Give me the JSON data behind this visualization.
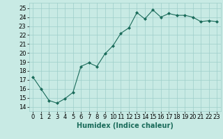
{
  "x": [
    0,
    1,
    2,
    3,
    4,
    5,
    6,
    7,
    8,
    9,
    10,
    11,
    12,
    13,
    14,
    15,
    16,
    17,
    18,
    19,
    20,
    21,
    22,
    23
  ],
  "y": [
    17.3,
    16.0,
    14.7,
    14.4,
    14.9,
    15.6,
    18.5,
    18.9,
    18.5,
    19.9,
    20.8,
    22.2,
    22.8,
    24.5,
    23.8,
    24.8,
    24.0,
    24.4,
    24.2,
    24.2,
    24.0,
    23.5,
    23.6,
    23.5
  ],
  "line_color": "#1a6b5a",
  "marker": "D",
  "marker_size": 2,
  "bg_color": "#c8eae4",
  "grid_color": "#9ececa",
  "xlabel": "Humidex (Indice chaleur)",
  "ylabel_ticks": [
    14,
    15,
    16,
    17,
    18,
    19,
    20,
    21,
    22,
    23,
    24,
    25
  ],
  "ylim": [
    13.5,
    25.6
  ],
  "xlim": [
    -0.5,
    23.5
  ],
  "xtick_labels": [
    "0",
    "1",
    "2",
    "3",
    "4",
    "5",
    "6",
    "7",
    "8",
    "9",
    "10",
    "11",
    "12",
    "13",
    "14",
    "15",
    "16",
    "17",
    "18",
    "19",
    "20",
    "21",
    "22",
    "23"
  ],
  "xlabel_fontsize": 7,
  "tick_fontsize": 6,
  "linewidth": 0.8
}
